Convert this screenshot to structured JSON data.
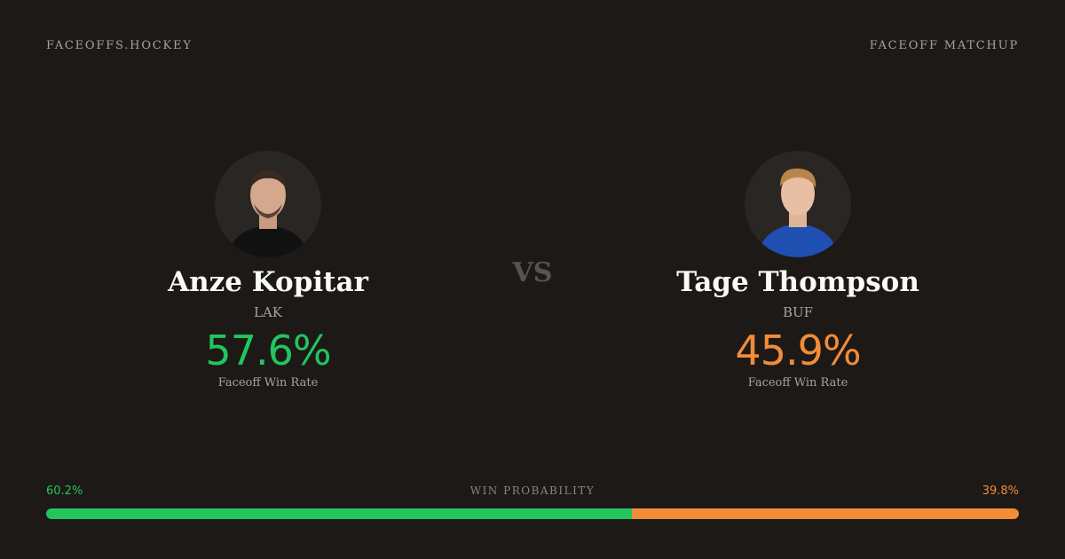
{
  "header": {
    "brand": "FACEOFFS.HOCKEY",
    "label": "FACEOFF MATCHUP"
  },
  "vs": "VS",
  "players": [
    {
      "name": "Anze Kopitar",
      "team": "LAK",
      "win_rate": "57.6%",
      "rate_label": "Faceoff Win Rate",
      "color": "#22c55e"
    },
    {
      "name": "Tage Thompson",
      "team": "BUF",
      "win_rate": "45.9%",
      "rate_label": "Faceoff Win Rate",
      "color": "#f28c38"
    }
  ],
  "probability": {
    "title": "WIN PROBABILITY",
    "left": {
      "value": 60.2,
      "label": "60.2%"
    },
    "right": {
      "value": 39.8,
      "label": "39.8%"
    }
  }
}
